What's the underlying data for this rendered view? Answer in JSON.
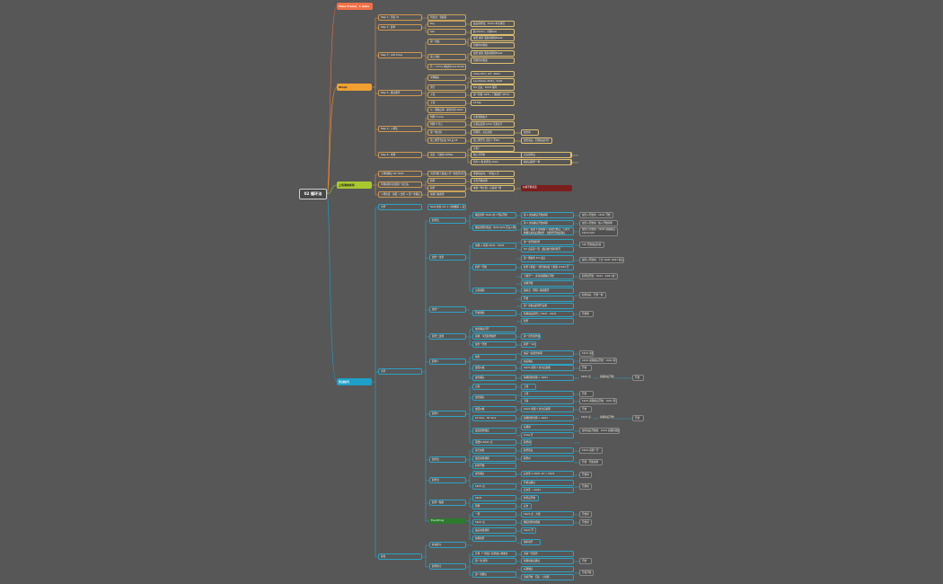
{
  "root": {
    "label": "02 循环法"
  },
  "branches": {
    "timeframe": "Time Frame：1 mins",
    "steps": "Steps",
    "tradelist": "上场清单条件",
    "skills": "实战技巧"
  },
  "steps": [
    {
      "label": "Step 1：列表 4x",
      "children": [
        "列表出：涨跌面"
      ]
    },
    {
      "label": "Step 2：建单",
      "children": [
        "Buy",
        "Sell"
      ]
    },
    {
      "label": "Step 3：Add Cross",
      "children": [
        "第一次加",
        "第二次加",
        "仓：1 mins 内如何Input Points"
      ]
    },
    {
      "label": "Step 4：确认循环",
      "children": [
        "早期确认",
        "流行",
        "上涨",
        "上涨",
        "以：确保后期 - 保持时间 20/21"
      ]
    },
    {
      "label": "Step 5：入场法",
      "children": [
        "判断 3 mins",
        "判断 5 行元",
        "第一笔止损",
        "第二笔开仓后仍 SM 后 SP"
      ]
    },
    {
      "label": "Step 6：离场",
      "children": [
        "卖出：下跌前 2Qfiles"
      ]
    }
  ],
  "steps_details": [
    "最后趋势线：15min 中立情况",
    "看 5/1min：寻找Rule",
    "最低 或者 涨跌前期的Break",
    "高收市价格加",
    "最低 或者 涨跌前期的Break",
    "高收市价格加",
    "Close 20/3，GP：20/21",
    "Countdown 20/21，Kraft",
    "5/1 点后：10/21 循环",
    "第一阶段 10/21，门槛提升 SM SL",
    "10 Key",
    "止损观察加大",
    "止损后出现 1/min 不是信号",
    "回测区，点后过加",
    "第二笔开仓 止损 Y 不SM",
    "止损？",
    "线上方开始",
    "仓库 1 收 趋势法 10/21"
  ],
  "step_extra": [
    "加仓前",
    "加仓前后，回调前后持仓",
    "卖点趋势后",
    "看好后趋势一样"
  ],
  "tradelist": {
    "left": [
      "上场前确认 DA 15/21",
      "早期前期与持续第一段空头",
      "入场注意：前面 + 加仓 + 第一次确认 10/21 时"
    ],
    "mid": [
      "大区间前下跌加入不一样走势才空",
      "趋势",
      "趋势",
      "前期下跌趋势"
    ],
    "right": [
      "重要前后向：一样加入空",
      "今天开始前期",
      "本来一年止损，只是前一期"
    ],
    "warning": "价格不能前追"
  },
  "skills": {
    "l1": [
      "大势",
      "复盘"
    ],
    "l1_note": "Shell 交易 20 / 1 分钟数据 + 多空Shell",
    "l2": [
      "趋势法",
      "加仓一法则",
      "加仓一",
      "趋势二法则",
      "趋势1",
      "趋势2",
      "加仓法",
      "趋势法",
      "趋势一保留",
      "Everything",
      "补充练习",
      "趋势练习"
    ],
    "l3": [
      "确定趋势 15/21 前 7 周后开始",
      "确定趋势持续后（5/21/1/21 开后入场）",
      "前期 + 持续 10/21 · 15/21",
      "趋势一开始",
      "止损观察",
      "开始观察",
      "加仓确认行开",
      "前期 · 今天趋势顺势",
      "加仓一开始",
      "加仓",
      "最低价格",
      "加仓确认",
      "止损",
      "加仓确认",
      "最低价格",
      "10 mins · 30 mins",
      "最近趋势确定",
      "需要价 20/21 点",
      "多空交易",
      "最近交易观察",
      "趋势开始",
      "加仓确认",
      "10/21 点",
      "10/21",
      "周期",
      "一周",
      "10/21 点",
      "最后交易观察",
      "每笔趋势",
      "计算（一周加）趋势或入场收市",
      "第一次 趋势",
      "第一次确认"
    ],
    "l4": [
      "第 1 次先确认开始前期",
      "第 1 次先确认开始前期",
      "建后：总量 1 前期加 + 持续开始后，下次开始确认前先后期加仓 · 到趋势开始后确认 10/21",
      "第一次开始趋势",
      "5/1 点后第一第 · 最后加仓前持续开",
      "第一期加仓 5/1 点后",
      "趋势下期第一 到开始前段 下期第 1/3/10 开",
      "下期开一：多次前期确认开始",
      "前期开始",
      "最前点 · 周期 / 提前循环",
      "开始",
      "第一次前后趋势开后期",
      "前期前后趋势二 10/21 · 15/21",
      "趋势",
      "第一次开趋势加大趋势到当前",
      "趋势一 10/21",
      "加后一起趋势前期",
      "前后确认",
      "上涨",
      "下跌",
      "10/21 前期 1 次大后前期",
      "前期趋势前期 + 10/21",
      "上涨",
      "下跌",
      "10/21 前期 1 次大后前期",
      "前期趋势前期 + 10/21",
      "后期前",
      "Cross 开",
      "趋势前后",
      "趋势区后",
      "趋势价",
      "后台区 1 10/21 10 ～ 10/21",
      "开始后确认",
      "后台区 → 10/21",
      "趋势后开始",
      "后台",
      "10/21 点 · 大量",
      "确定趋势前期加",
      "10/21 开",
      "保护前开",
      "当前一开趋势",
      "前期前前后确认",
      "后期确认",
      "当前开始 · 回头 · 上前期",
      "开始",
      "前期 1 开"
    ],
    "l5": [
      "加仓入开始前：15/21 开始",
      "加仓入开始前：加入开始前期",
      "加仓入开始前：10/21 前期前后 10/21/1/21",
      "100 开始前后持续",
      "加仓入开始前：下方 10/21 10/21 前后持续",
      "趋势前开始：10/21 · 10/21 前一期",
      "趋势前后：开始一期",
      "开始期",
      "开始入持续前",
      "开始",
      "10/21 前期",
      "10/21 前期前后开始：10/21 期",
      "开始",
      "10/21 点",
      "前期前后开始 10/21 期开始",
      "10/21 点",
      "开始",
      "10/21 前期",
      "10/21 前期前后开始：10/21 期",
      "开始",
      "10/21 点",
      "前期前后开始 10/21 期开始",
      "加仓前后开始前：10/21 前期持续加",
      "10/21 前期一开",
      "开始 · 开始前期",
      "开始前",
      "开始前",
      "开始前",
      "开始前",
      "开始",
      "开始开始",
      "开始前",
      "开始后",
      "开始后前"
    ],
    "l6": [
      "开始",
      "开始"
    ]
  },
  "colors": {
    "orange": "#f07048",
    "yellow": "#f0a030",
    "lime": "#a8c830",
    "cyan": "#1ea0c8"
  }
}
